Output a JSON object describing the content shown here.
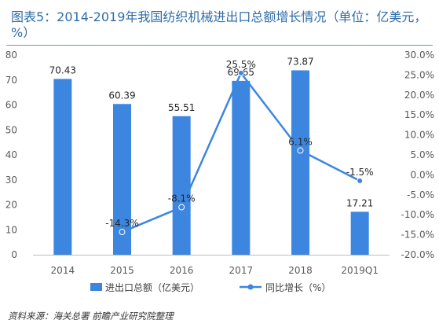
{
  "title": "图表5：2014-2019年我国纺织机械进出口总额增长情况（单位：亿美元，%）",
  "source": "资料来源：海关总署 前瞻产业研究院整理",
  "chart_data": {
    "type": "bar+line",
    "categories": [
      "2014",
      "2015",
      "2016",
      "2017",
      "2018",
      "2019Q1"
    ],
    "series": [
      {
        "name": "进出口总额（亿美元）",
        "type": "bar",
        "axis": "left",
        "color": "#3C86E0",
        "values": [
          70.43,
          60.39,
          55.51,
          69.65,
          73.87,
          17.21
        ],
        "labels": [
          "70.43",
          "60.39",
          "55.51",
          "69.65",
          "73.87",
          "17.21"
        ]
      },
      {
        "name": "同比增长（%）",
        "type": "line",
        "axis": "right",
        "color": "#3C86E0",
        "values": [
          null,
          -14.3,
          -8.1,
          25.5,
          6.1,
          -1.5
        ],
        "labels": [
          "",
          "-14.3%",
          "-8.1%",
          "25.5%",
          "6.1%",
          "-1.5%"
        ]
      }
    ],
    "left_axis": {
      "min": 0,
      "max": 80,
      "step": 10,
      "ticks": [
        "0",
        "10",
        "20",
        "30",
        "40",
        "50",
        "60",
        "70",
        "80"
      ]
    },
    "right_axis": {
      "min": -20,
      "max": 30,
      "step": 5,
      "ticks": [
        "-20.0%",
        "-15.0%",
        "-10.0%",
        "-5.0%",
        "0.0%",
        "5.0%",
        "10.0%",
        "15.0%",
        "20.0%",
        "25.0%",
        "30.0%"
      ]
    },
    "legend_position": "bottom",
    "grid": false
  }
}
